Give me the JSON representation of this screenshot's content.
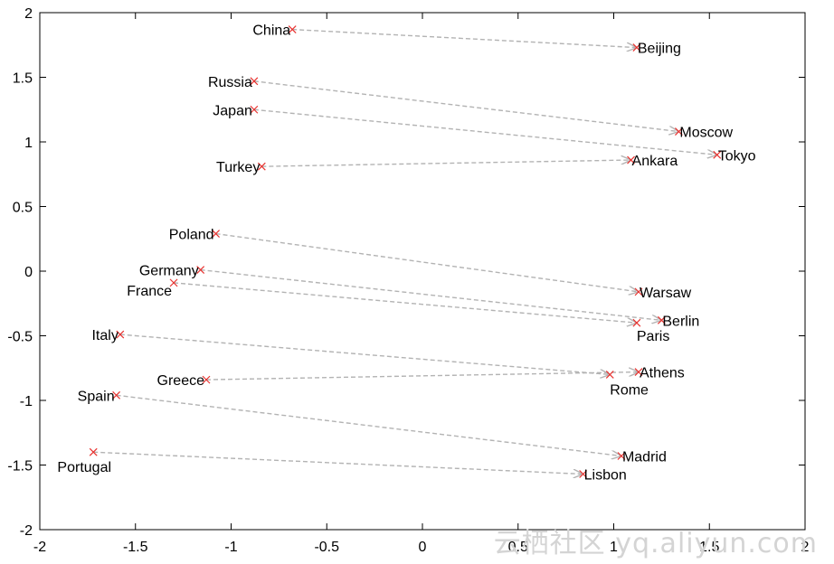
{
  "watermark": "云栖社区 yq.aliyun.com",
  "chart_data": {
    "type": "scatter",
    "title": "",
    "xlabel": "",
    "ylabel": "",
    "xlim": [
      -2,
      2
    ],
    "ylim": [
      -2,
      2
    ],
    "xticks": [
      -2,
      -1.5,
      -1,
      -0.5,
      0,
      0.5,
      1,
      1.5,
      2
    ],
    "yticks": [
      -2,
      -1.5,
      -1,
      -0.5,
      0,
      0.5,
      1,
      1.5,
      2
    ],
    "xtick_labels": [
      "-2",
      "-1.5",
      "-1",
      "-0.5",
      "0",
      "0.5",
      "1",
      "1.5",
      "2"
    ],
    "ytick_labels": [
      "-2",
      "-1.5",
      "-1",
      "-0.5",
      "0",
      "0.5",
      "1",
      "1.5",
      "2"
    ],
    "grid": false,
    "marker": "x",
    "marker_color": "#e8322f",
    "arrow_color": "#b3b3b3",
    "pairs": [
      {
        "country": "China",
        "cx": -0.68,
        "cy": 1.87,
        "capital": "Beijing",
        "px": 1.12,
        "py": 1.73
      },
      {
        "country": "Russia",
        "cx": -0.88,
        "cy": 1.47,
        "capital": "Moscow",
        "px": 1.34,
        "py": 1.08
      },
      {
        "country": "Japan",
        "cx": -0.88,
        "cy": 1.25,
        "capital": "Tokyo",
        "px": 1.54,
        "py": 0.9
      },
      {
        "country": "Turkey",
        "cx": -0.84,
        "cy": 0.81,
        "capital": "Ankara",
        "px": 1.09,
        "py": 0.86
      },
      {
        "country": "Poland",
        "cx": -1.08,
        "cy": 0.29,
        "capital": "Warsaw",
        "px": 1.13,
        "py": -0.16
      },
      {
        "country": "Germany",
        "cx": -1.16,
        "cy": 0.01,
        "capital": "Berlin",
        "px": 1.25,
        "py": -0.38
      },
      {
        "country": "France",
        "cx": -1.3,
        "cy": -0.09,
        "capital": "Paris",
        "px": 1.12,
        "py": -0.4
      },
      {
        "country": "Italy",
        "cx": -1.58,
        "cy": -0.49,
        "capital": "Rome",
        "px": 0.98,
        "py": -0.8
      },
      {
        "country": "Greece",
        "cx": -1.13,
        "cy": -0.84,
        "capital": "Athens",
        "px": 1.13,
        "py": -0.78
      },
      {
        "country": "Spain",
        "cx": -1.6,
        "cy": -0.96,
        "capital": "Madrid",
        "px": 1.04,
        "py": -1.43
      },
      {
        "country": "Portugal",
        "cx": -1.72,
        "cy": -1.4,
        "capital": "Lisbon",
        "px": 0.84,
        "py": -1.57
      }
    ]
  }
}
